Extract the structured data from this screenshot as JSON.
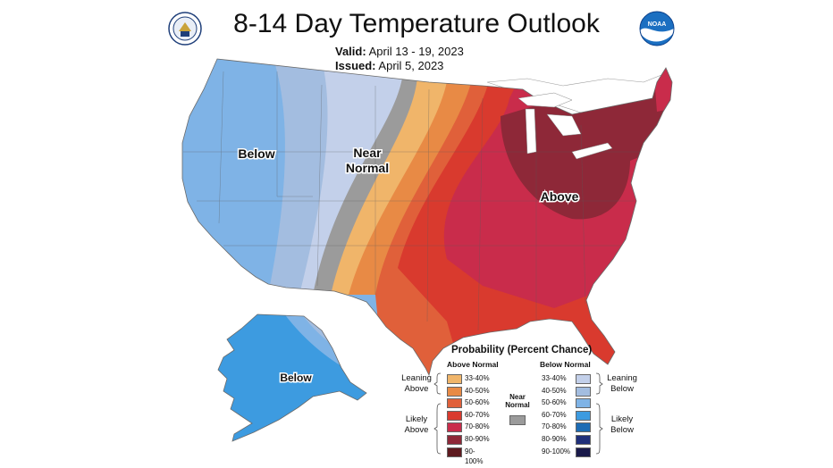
{
  "header": {
    "title": "8-14 Day Temperature Outlook",
    "valid_label": "Valid:",
    "valid_value": "April 13 - 19, 2023",
    "issued_label": "Issued:",
    "issued_value": "April 5, 2023"
  },
  "logos": {
    "left": {
      "icon": "department-of-commerce-seal",
      "text": "DEPARTMENT OF COMMERCE"
    },
    "right": {
      "icon": "noaa-logo",
      "text": "NOAA"
    }
  },
  "map": {
    "labels": {
      "below_west": "Below",
      "near_normal_1": "Near",
      "near_normal_2": "Normal",
      "above_east": "Above",
      "below_alaska": "Below"
    }
  },
  "legend": {
    "title": "Probability (Percent Chance)",
    "above_header": "Above Normal",
    "below_header": "Below Normal",
    "near_normal_1": "Near",
    "near_normal_2": "Normal",
    "near_normal_color": "#9b9b9b",
    "leaning_above_1": "Leaning",
    "leaning_above_2": "Above",
    "likely_above_1": "Likely",
    "likely_above_2": "Above",
    "leaning_below_1": "Leaning",
    "leaning_below_2": "Below",
    "likely_below_1": "Likely",
    "likely_below_2": "Below",
    "above": [
      {
        "label": "33-40%",
        "color": "#f0b56a"
      },
      {
        "label": "40-50%",
        "color": "#e88a45"
      },
      {
        "label": "50-60%",
        "color": "#e0603a"
      },
      {
        "label": "60-70%",
        "color": "#d93a2e"
      },
      {
        "label": "70-80%",
        "color": "#c92c4b"
      },
      {
        "label": "80-90%",
        "color": "#8e2838"
      },
      {
        "label": "90-100%",
        "color": "#5e1a1f"
      }
    ],
    "below": [
      {
        "label": "33-40%",
        "color": "#c3d0ea"
      },
      {
        "label": "40-50%",
        "color": "#a3bde0"
      },
      {
        "label": "50-60%",
        "color": "#7fb3e6"
      },
      {
        "label": "60-70%",
        "color": "#3d9be0"
      },
      {
        "label": "70-80%",
        "color": "#1d6cb4"
      },
      {
        "label": "80-90%",
        "color": "#1f2f7a"
      },
      {
        "label": "90-100%",
        "color": "#1a1a4a"
      }
    ]
  }
}
